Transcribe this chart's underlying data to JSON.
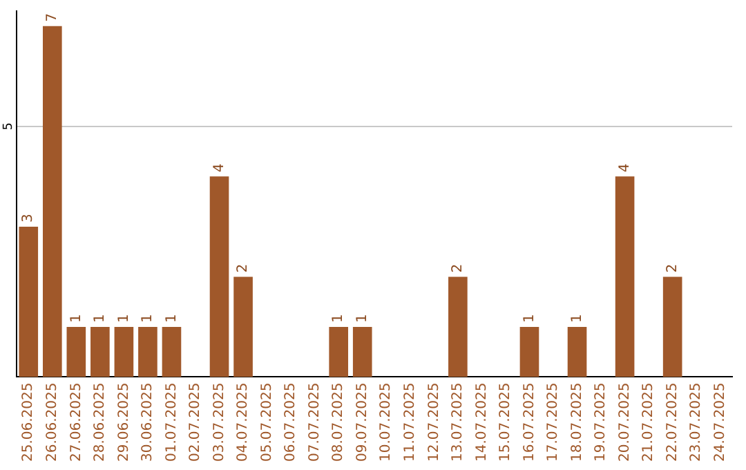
{
  "chart_data": {
    "type": "bar",
    "categories": [
      "25.06.2025",
      "26.06.2025",
      "27.06.2025",
      "28.06.2025",
      "29.06.2025",
      "30.06.2025",
      "01.07.2025",
      "02.07.2025",
      "03.07.2025",
      "04.07.2025",
      "05.07.2025",
      "06.07.2025",
      "07.07.2025",
      "08.07.2025",
      "09.07.2025",
      "10.07.2025",
      "11.07.2025",
      "12.07.2025",
      "13.07.2025",
      "14.07.2025",
      "15.07.2025",
      "16.07.2025",
      "17.07.2025",
      "18.07.2025",
      "19.07.2025",
      "20.07.2025",
      "21.07.2025",
      "22.07.2025",
      "23.07.2025",
      "24.07.2025"
    ],
    "values": [
      3,
      7,
      1,
      1,
      1,
      1,
      1,
      0,
      4,
      2,
      0,
      0,
      0,
      1,
      1,
      0,
      0,
      0,
      2,
      0,
      0,
      1,
      0,
      1,
      0,
      4,
      0,
      2,
      0,
      0
    ],
    "value_labels": [
      "3",
      "7",
      "1",
      "1",
      "1",
      "1",
      "1",
      null,
      "4",
      "2",
      null,
      null,
      null,
      "1",
      "1",
      null,
      null,
      null,
      "2",
      null,
      null,
      "1",
      null,
      "1",
      null,
      "4",
      null,
      "2",
      null,
      null
    ],
    "color": "#a0582a",
    "ylim": [
      0,
      7.3
    ],
    "yticks": [
      5
    ],
    "grid": "y",
    "legend": false
  }
}
